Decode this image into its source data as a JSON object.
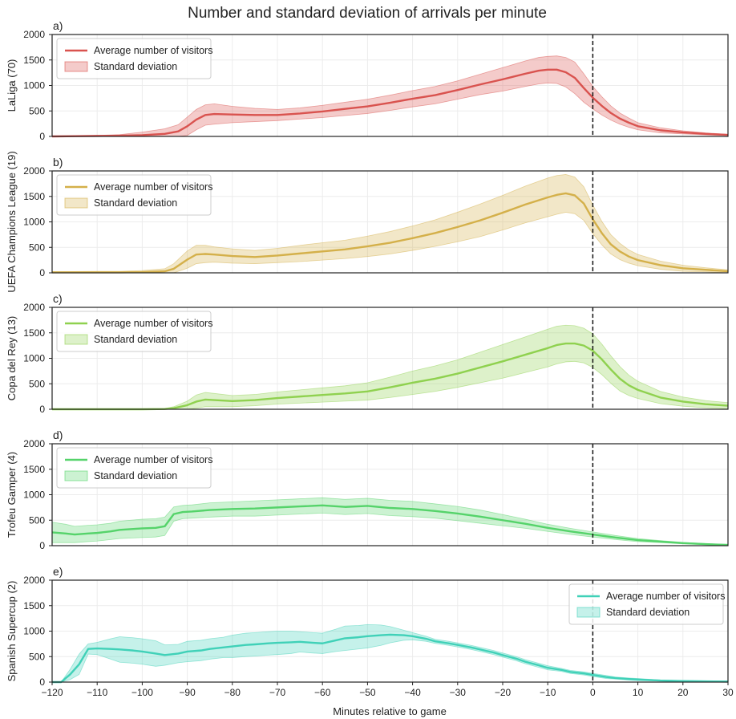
{
  "title": "Number and standard deviation of arrivals per minute",
  "chart_data": {
    "type": "line",
    "xlabel": "Minutes relative to game",
    "xlim": [
      -120,
      30
    ],
    "xticks": [
      -120,
      -110,
      -100,
      -90,
      -80,
      -70,
      -60,
      -50,
      -40,
      -30,
      -20,
      -10,
      0,
      10,
      20,
      30
    ],
    "vline_x": 0,
    "grid": true,
    "panels": [
      {
        "label": "a)",
        "ylabel": "LaLiga (70)",
        "color": "#d9534f",
        "ylim": [
          0,
          2000
        ],
        "yticks": [
          0,
          500,
          1000,
          1500,
          2000
        ],
        "legend_position": "top-left",
        "legend": [
          "Average number of visitors",
          "Standard deviation"
        ],
        "x": [
          -120,
          -115,
          -110,
          -105,
          -100,
          -95,
          -92,
          -90,
          -88,
          -86,
          -84,
          -80,
          -75,
          -70,
          -65,
          -60,
          -55,
          -50,
          -45,
          -40,
          -35,
          -30,
          -25,
          -20,
          -15,
          -12,
          -10,
          -8,
          -6,
          -4,
          -2,
          0,
          2,
          4,
          6,
          8,
          10,
          15,
          20,
          25,
          30
        ],
        "mean": [
          0,
          5,
          10,
          15,
          25,
          50,
          100,
          200,
          330,
          420,
          440,
          430,
          420,
          420,
          450,
          490,
          540,
          590,
          660,
          740,
          810,
          910,
          1020,
          1120,
          1230,
          1290,
          1310,
          1310,
          1260,
          1150,
          950,
          760,
          600,
          460,
          350,
          270,
          200,
          120,
          80,
          50,
          30
        ],
        "std": [
          0,
          5,
          10,
          20,
          60,
          100,
          130,
          180,
          200,
          200,
          200,
          160,
          130,
          110,
          110,
          120,
          130,
          140,
          150,
          160,
          170,
          180,
          200,
          230,
          250,
          260,
          260,
          270,
          290,
          310,
          280,
          220,
          180,
          140,
          110,
          90,
          70,
          50,
          30,
          20,
          10
        ]
      },
      {
        "label": "b)",
        "ylabel": "UEFA Champions League (19)",
        "color": "#d4b04a",
        "ylim": [
          0,
          2000
        ],
        "yticks": [
          0,
          500,
          1000,
          1500,
          2000
        ],
        "legend_position": "top-left",
        "legend": [
          "Average number of visitors",
          "Standard deviation"
        ],
        "x": [
          -120,
          -115,
          -110,
          -105,
          -100,
          -95,
          -93,
          -90,
          -88,
          -86,
          -84,
          -80,
          -75,
          -70,
          -65,
          -60,
          -55,
          -50,
          -45,
          -40,
          -35,
          -30,
          -25,
          -20,
          -15,
          -10,
          -8,
          -6,
          -4,
          -2,
          0,
          2,
          4,
          6,
          8,
          10,
          15,
          20,
          25,
          30
        ],
        "mean": [
          10,
          10,
          10,
          10,
          15,
          30,
          80,
          260,
          360,
          370,
          360,
          330,
          310,
          340,
          380,
          420,
          460,
          520,
          590,
          680,
          780,
          900,
          1030,
          1180,
          1340,
          1480,
          1530,
          1560,
          1520,
          1360,
          1050,
          780,
          560,
          420,
          320,
          250,
          150,
          90,
          60,
          30
        ],
        "std": [
          10,
          15,
          20,
          20,
          30,
          50,
          100,
          170,
          180,
          170,
          150,
          140,
          130,
          140,
          160,
          170,
          180,
          200,
          220,
          240,
          260,
          290,
          320,
          340,
          360,
          380,
          380,
          370,
          360,
          330,
          280,
          230,
          190,
          160,
          130,
          110,
          80,
          60,
          40,
          30
        ]
      },
      {
        "label": "c)",
        "ylabel": "Copa del Rey (13)",
        "color": "#8fd14f",
        "ylim": [
          0,
          2000
        ],
        "yticks": [
          0,
          500,
          1000,
          1500,
          2000
        ],
        "legend_position": "top-left",
        "legend": [
          "Average number of visitors",
          "Standard deviation"
        ],
        "x": [
          -120,
          -115,
          -110,
          -105,
          -100,
          -95,
          -93,
          -90,
          -88,
          -86,
          -84,
          -80,
          -75,
          -70,
          -65,
          -60,
          -55,
          -50,
          -45,
          -40,
          -35,
          -30,
          -25,
          -20,
          -15,
          -10,
          -8,
          -6,
          -4,
          -2,
          0,
          2,
          4,
          6,
          8,
          10,
          15,
          20,
          25,
          30
        ],
        "mean": [
          0,
          0,
          0,
          0,
          0,
          5,
          20,
          80,
          150,
          190,
          180,
          160,
          180,
          220,
          250,
          280,
          310,
          350,
          430,
          520,
          600,
          700,
          820,
          940,
          1070,
          1200,
          1260,
          1290,
          1290,
          1250,
          1150,
          980,
          780,
          600,
          470,
          380,
          230,
          150,
          100,
          70
        ],
        "std": [
          0,
          0,
          0,
          0,
          0,
          10,
          30,
          80,
          130,
          140,
          130,
          110,
          110,
          120,
          130,
          140,
          150,
          170,
          200,
          230,
          250,
          270,
          300,
          330,
          350,
          370,
          370,
          360,
          350,
          340,
          330,
          300,
          270,
          240,
          200,
          170,
          120,
          90,
          70,
          60
        ]
      },
      {
        "label": "d)",
        "ylabel": "Trofeu Gamper (4)",
        "color": "#55d36a",
        "ylim": [
          0,
          2000
        ],
        "yticks": [
          0,
          500,
          1000,
          1500,
          2000
        ],
        "legend_position": "top-left",
        "legend": [
          "Average number of visitors",
          "Standard deviation"
        ],
        "x": [
          -120,
          -117,
          -115,
          -112,
          -110,
          -107,
          -105,
          -100,
          -97,
          -95,
          -93,
          -91,
          -89,
          -85,
          -80,
          -75,
          -70,
          -65,
          -60,
          -55,
          -50,
          -45,
          -40,
          -35,
          -30,
          -25,
          -20,
          -15,
          -10,
          -5,
          0,
          5,
          10,
          15,
          20,
          25,
          30
        ],
        "mean": [
          260,
          240,
          220,
          240,
          250,
          280,
          310,
          340,
          350,
          380,
          620,
          660,
          670,
          700,
          720,
          730,
          750,
          770,
          790,
          760,
          780,
          740,
          720,
          680,
          630,
          570,
          500,
          430,
          350,
          280,
          220,
          160,
          110,
          80,
          50,
          30,
          15
        ],
        "std": [
          200,
          180,
          160,
          160,
          160,
          160,
          170,
          180,
          180,
          180,
          140,
          130,
          130,
          140,
          140,
          150,
          150,
          150,
          150,
          150,
          150,
          150,
          150,
          140,
          140,
          130,
          110,
          90,
          70,
          60,
          50,
          40,
          30,
          20,
          15,
          10,
          10
        ]
      },
      {
        "label": "e)",
        "ylabel": "Spanish Supercup (2)",
        "color": "#40d1b8",
        "ylim": [
          0,
          2000
        ],
        "yticks": [
          0,
          500,
          1000,
          1500,
          2000
        ],
        "legend_position": "top-right",
        "legend": [
          "Average number of visitors",
          "Standard deviation"
        ],
        "x": [
          -120,
          -118,
          -116,
          -114,
          -112,
          -110,
          -107,
          -105,
          -102,
          -100,
          -97,
          -95,
          -92,
          -90,
          -87,
          -85,
          -82,
          -80,
          -77,
          -75,
          -72,
          -70,
          -67,
          -65,
          -62,
          -60,
          -57,
          -55,
          -52,
          -50,
          -47,
          -45,
          -42,
          -40,
          -37,
          -35,
          -32,
          -30,
          -27,
          -25,
          -22,
          -20,
          -17,
          -15,
          -12,
          -10,
          -7,
          -5,
          -2,
          0,
          3,
          5,
          8,
          10,
          15,
          20,
          25,
          30
        ],
        "mean": [
          0,
          0,
          150,
          350,
          650,
          660,
          650,
          640,
          620,
          600,
          560,
          530,
          560,
          600,
          620,
          650,
          680,
          700,
          730,
          740,
          760,
          770,
          780,
          790,
          770,
          760,
          820,
          860,
          880,
          900,
          920,
          930,
          920,
          900,
          850,
          800,
          760,
          730,
          680,
          640,
          580,
          530,
          460,
          400,
          330,
          280,
          240,
          200,
          170,
          140,
          100,
          80,
          60,
          50,
          30,
          20,
          15,
          10
        ],
        "std": [
          0,
          0,
          100,
          200,
          100,
          120,
          200,
          250,
          250,
          250,
          250,
          200,
          180,
          200,
          200,
          200,
          200,
          220,
          230,
          230,
          230,
          230,
          220,
          200,
          200,
          200,
          220,
          240,
          230,
          230,
          200,
          160,
          100,
          70,
          50,
          40,
          40,
          40,
          40,
          40,
          40,
          40,
          40,
          40,
          40,
          40,
          30,
          30,
          30,
          30,
          30,
          20,
          20,
          20,
          10,
          10,
          10,
          10
        ]
      }
    ]
  }
}
